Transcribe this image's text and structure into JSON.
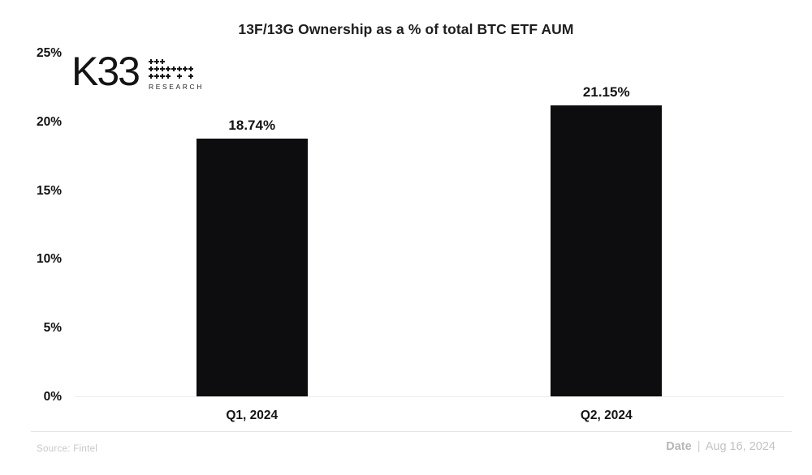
{
  "header": {
    "title": "13F/13G Ownership as a % of total BTC ETF AUM"
  },
  "logo": {
    "text": "K33",
    "subtext": "RESEARCH",
    "mark_icon": "k33-dots-icon",
    "mark_pattern": [
      [
        1,
        1,
        1,
        0,
        0,
        0,
        0,
        0
      ],
      [
        1,
        1,
        1,
        1,
        1,
        1,
        1,
        1
      ],
      [
        1,
        1,
        1,
        1,
        0,
        1,
        0,
        1
      ]
    ]
  },
  "chart_data": {
    "type": "bar",
    "title": "13F/13G Ownership as a % of total BTC ETF AUM",
    "categories": [
      "Q1, 2024",
      "Q2, 2024"
    ],
    "values": [
      18.74,
      21.15
    ],
    "value_labels": [
      "18.74%",
      "21.15%"
    ],
    "xlabel": "",
    "ylabel": "",
    "ylim": [
      0,
      25
    ],
    "ytick_values": [
      0,
      5,
      10,
      15,
      20,
      25
    ],
    "ytick_labels": [
      "0%",
      "5%",
      "10%",
      "15%",
      "20%",
      "25%"
    ],
    "grid": false,
    "legend": "none",
    "bar_color": "#0d0d0f"
  },
  "footer": {
    "source_label": "Source:",
    "source_value": "Fintel",
    "date_label": "Date",
    "date_separator": "|",
    "date_value": "Aug 16, 2024"
  }
}
